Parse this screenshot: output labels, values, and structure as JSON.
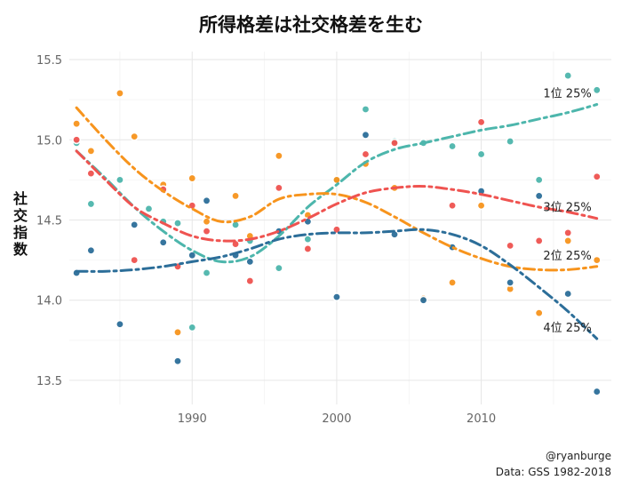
{
  "chart_data": {
    "type": "scatter",
    "title": "所得格差は社交格差を生む",
    "ylabel": "社交指数",
    "xlabel": "",
    "xlim": [
      1981.5,
      2019
    ],
    "ylim": [
      13.35,
      15.55
    ],
    "x_ticks": [
      1990,
      2000,
      2010
    ],
    "y_ticks": [
      13.5,
      14.0,
      14.5,
      15.0,
      15.5
    ],
    "grid": true,
    "legend": "none",
    "caption": [
      "@ryanburge",
      "Data: GSS 1982-2018"
    ],
    "series": [
      {
        "name": "1位 25%",
        "color": "#4db6ac",
        "points": [
          [
            1982,
            14.98
          ],
          [
            1983,
            14.6
          ],
          [
            1985,
            14.75
          ],
          [
            1987,
            14.57
          ],
          [
            1988,
            14.49
          ],
          [
            1989,
            14.48
          ],
          [
            1990,
            13.83
          ],
          [
            1991,
            14.17
          ],
          [
            1993,
            14.47
          ],
          [
            1994,
            14.37
          ],
          [
            1996,
            14.2
          ],
          [
            1998,
            14.38
          ],
          [
            2000,
            14.75
          ],
          [
            2002,
            15.19
          ],
          [
            2004,
            14.99
          ],
          [
            2006,
            14.98
          ],
          [
            2008,
            14.96
          ],
          [
            2010,
            14.91
          ],
          [
            2012,
            14.99
          ],
          [
            2014,
            14.75
          ],
          [
            2016,
            15.4
          ],
          [
            2018,
            15.31
          ]
        ],
        "trend": [
          [
            1982,
            14.93
          ],
          [
            1984,
            14.76
          ],
          [
            1986,
            14.58
          ],
          [
            1988,
            14.43
          ],
          [
            1990,
            14.31
          ],
          [
            1992,
            14.24
          ],
          [
            1994,
            14.27
          ],
          [
            1996,
            14.4
          ],
          [
            1998,
            14.58
          ],
          [
            2000,
            14.72
          ],
          [
            2002,
            14.86
          ],
          [
            2004,
            14.94
          ],
          [
            2006,
            14.98
          ],
          [
            2008,
            15.02
          ],
          [
            2010,
            15.06
          ],
          [
            2012,
            15.09
          ],
          [
            2014,
            15.13
          ],
          [
            2016,
            15.17
          ],
          [
            2018,
            15.22
          ]
        ]
      },
      {
        "name": "2位 25%",
        "color": "#f7941d",
        "points": [
          [
            1982,
            15.1
          ],
          [
            1983,
            14.93
          ],
          [
            1985,
            15.29
          ],
          [
            1986,
            15.02
          ],
          [
            1988,
            14.72
          ],
          [
            1989,
            13.8
          ],
          [
            1990,
            14.76
          ],
          [
            1991,
            14.49
          ],
          [
            1993,
            14.65
          ],
          [
            1994,
            14.4
          ],
          [
            1996,
            14.9
          ],
          [
            1998,
            14.53
          ],
          [
            2000,
            14.75
          ],
          [
            2002,
            14.85
          ],
          [
            2004,
            14.7
          ],
          [
            2006,
            14.01
          ],
          [
            2008,
            14.11
          ],
          [
            2010,
            14.59
          ],
          [
            2012,
            14.07
          ],
          [
            2014,
            13.92
          ],
          [
            2016,
            14.37
          ],
          [
            2018,
            14.25
          ]
        ],
        "trend": [
          [
            1982,
            15.2
          ],
          [
            1984,
            15.0
          ],
          [
            1986,
            14.82
          ],
          [
            1988,
            14.68
          ],
          [
            1990,
            14.57
          ],
          [
            1992,
            14.49
          ],
          [
            1994,
            14.52
          ],
          [
            1996,
            14.63
          ],
          [
            1998,
            14.66
          ],
          [
            2000,
            14.66
          ],
          [
            2002,
            14.61
          ],
          [
            2004,
            14.52
          ],
          [
            2006,
            14.42
          ],
          [
            2008,
            14.33
          ],
          [
            2010,
            14.26
          ],
          [
            2012,
            14.21
          ],
          [
            2014,
            14.19
          ],
          [
            2016,
            14.19
          ],
          [
            2018,
            14.21
          ]
        ]
      },
      {
        "name": "3位 25%",
        "color": "#ef5350",
        "points": [
          [
            1982,
            15.0
          ],
          [
            1983,
            14.79
          ],
          [
            1986,
            14.25
          ],
          [
            1988,
            14.69
          ],
          [
            1989,
            14.21
          ],
          [
            1990,
            14.59
          ],
          [
            1991,
            14.43
          ],
          [
            1993,
            14.35
          ],
          [
            1994,
            14.12
          ],
          [
            1996,
            14.7
          ],
          [
            1998,
            14.32
          ],
          [
            2000,
            14.44
          ],
          [
            2002,
            14.91
          ],
          [
            2004,
            14.98
          ],
          [
            2008,
            14.59
          ],
          [
            2010,
            15.11
          ],
          [
            2012,
            14.34
          ],
          [
            2014,
            14.37
          ],
          [
            2016,
            14.42
          ],
          [
            2018,
            14.77
          ]
        ],
        "trend": [
          [
            1982,
            14.93
          ],
          [
            1984,
            14.75
          ],
          [
            1986,
            14.58
          ],
          [
            1988,
            14.48
          ],
          [
            1990,
            14.4
          ],
          [
            1992,
            14.37
          ],
          [
            1994,
            14.38
          ],
          [
            1996,
            14.43
          ],
          [
            1998,
            14.51
          ],
          [
            2000,
            14.6
          ],
          [
            2002,
            14.67
          ],
          [
            2004,
            14.7
          ],
          [
            2006,
            14.71
          ],
          [
            2008,
            14.69
          ],
          [
            2010,
            14.66
          ],
          [
            2012,
            14.62
          ],
          [
            2014,
            14.58
          ],
          [
            2016,
            14.55
          ],
          [
            2018,
            14.51
          ]
        ]
      },
      {
        "name": "4位 25%",
        "color": "#2c6e99",
        "points": [
          [
            1982,
            14.17
          ],
          [
            1983,
            14.31
          ],
          [
            1985,
            13.85
          ],
          [
            1986,
            14.47
          ],
          [
            1988,
            14.36
          ],
          [
            1989,
            13.62
          ],
          [
            1990,
            14.28
          ],
          [
            1991,
            14.62
          ],
          [
            1993,
            14.28
          ],
          [
            1994,
            14.24
          ],
          [
            1996,
            14.43
          ],
          [
            1998,
            14.49
          ],
          [
            2000,
            14.02
          ],
          [
            2002,
            15.03
          ],
          [
            2004,
            14.41
          ],
          [
            2006,
            14.0
          ],
          [
            2008,
            14.33
          ],
          [
            2010,
            14.68
          ],
          [
            2012,
            14.11
          ],
          [
            2014,
            14.65
          ],
          [
            2016,
            14.04
          ],
          [
            2018,
            13.43
          ]
        ],
        "trend": [
          [
            1982,
            14.18
          ],
          [
            1984,
            14.18
          ],
          [
            1986,
            14.19
          ],
          [
            1988,
            14.21
          ],
          [
            1990,
            14.24
          ],
          [
            1992,
            14.27
          ],
          [
            1994,
            14.32
          ],
          [
            1996,
            14.38
          ],
          [
            1998,
            14.41
          ],
          [
            2000,
            14.42
          ],
          [
            2002,
            14.42
          ],
          [
            2004,
            14.43
          ],
          [
            2006,
            14.44
          ],
          [
            2008,
            14.41
          ],
          [
            2010,
            14.34
          ],
          [
            2012,
            14.22
          ],
          [
            2014,
            14.08
          ],
          [
            2016,
            13.93
          ],
          [
            2018,
            13.76
          ]
        ]
      }
    ]
  }
}
